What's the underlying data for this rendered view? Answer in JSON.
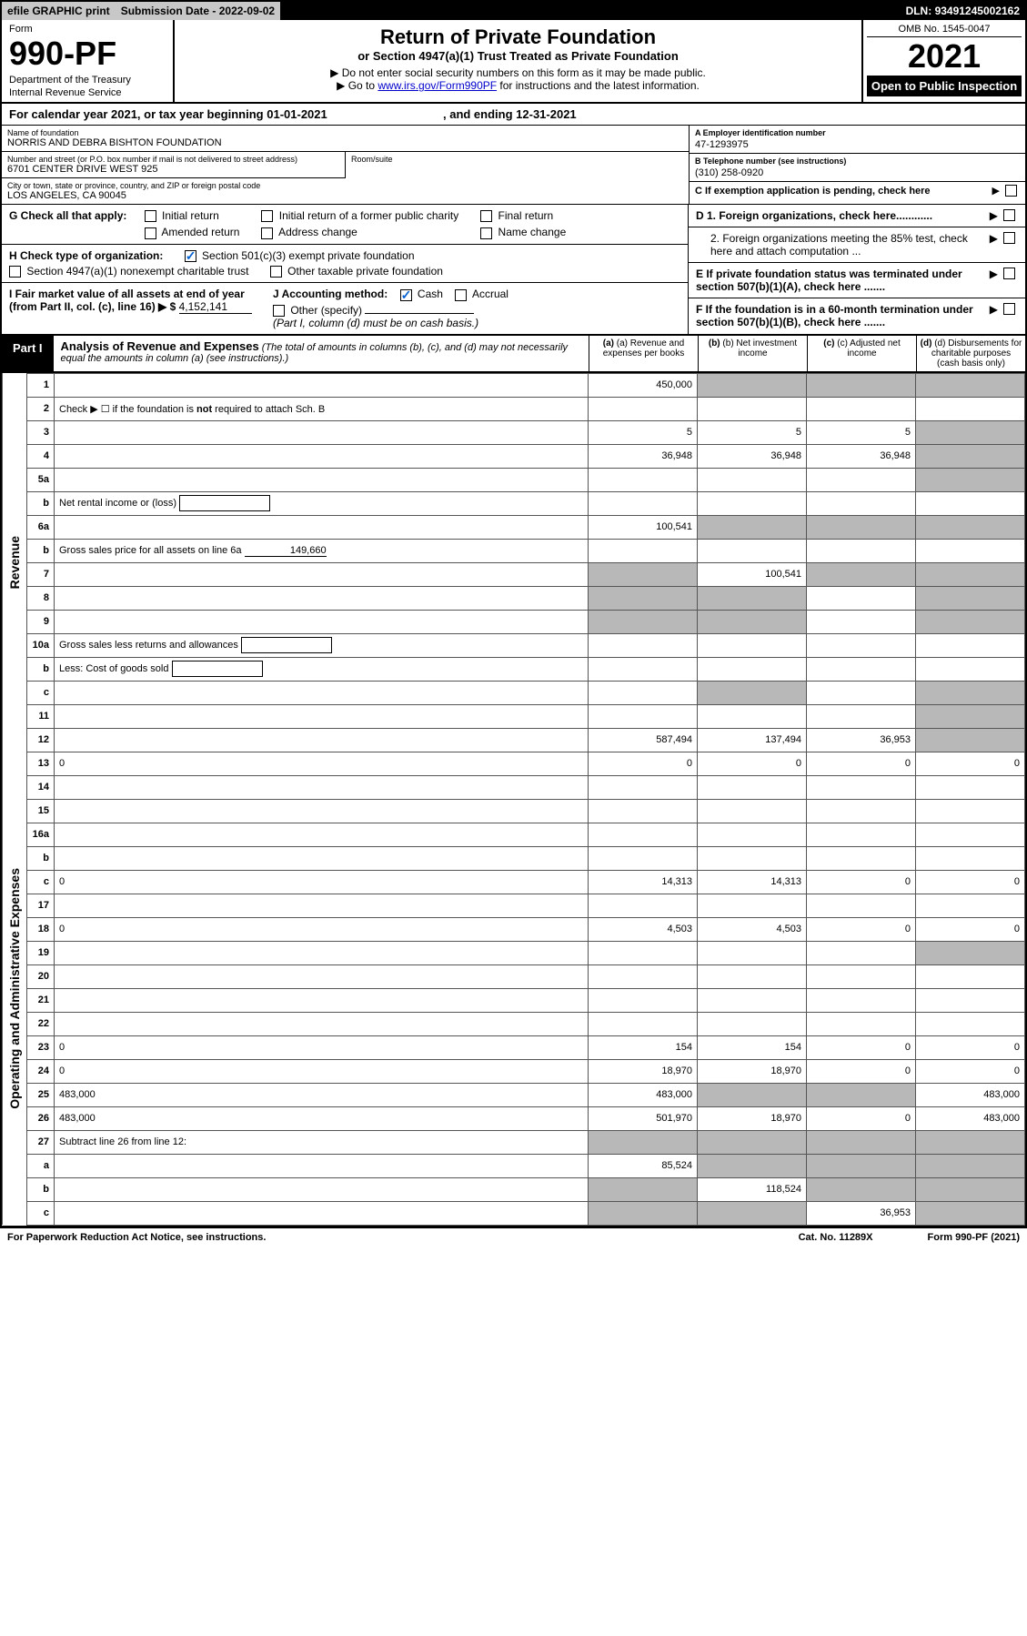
{
  "topbar": {
    "efile": "efile GRAPHIC print",
    "subdate_label": "Submission Date - ",
    "subdate": "2022-09-02",
    "dln_label": "DLN: ",
    "dln": "93491245002162"
  },
  "header": {
    "form_label": "Form",
    "form_no": "990-PF",
    "dept1": "Department of the Treasury",
    "dept2": "Internal Revenue Service",
    "title": "Return of Private Foundation",
    "subtitle": "or Section 4947(a)(1) Trust Treated as Private Foundation",
    "note1": "▶ Do not enter social security numbers on this form as it may be made public.",
    "note2_pre": "▶ Go to ",
    "note2_link": "www.irs.gov/Form990PF",
    "note2_post": " for instructions and the latest information.",
    "omb": "OMB No. 1545-0047",
    "year": "2021",
    "open": "Open to Public Inspection"
  },
  "cal": {
    "text_a": "For calendar year 2021, or tax year beginning ",
    "begin": "01-01-2021",
    "text_b": ", and ending ",
    "end": "12-31-2021"
  },
  "org": {
    "name_lbl": "Name of foundation",
    "name": "NORRIS AND DEBRA BISHTON FOUNDATION",
    "addr_lbl": "Number and street (or P.O. box number if mail is not delivered to street address)",
    "addr": "6701 CENTER DRIVE WEST 925",
    "room_lbl": "Room/suite",
    "city_lbl": "City or town, state or province, country, and ZIP or foreign postal code",
    "city": "LOS ANGELES, CA  90045",
    "ein_lbl": "A Employer identification number",
    "ein": "47-1293975",
    "tel_lbl": "B Telephone number (see instructions)",
    "tel": "(310) 258-0920",
    "c_lbl": "C If exemption application is pending, check here"
  },
  "g": {
    "lead": "G Check all that apply:",
    "items": [
      "Initial return",
      "Initial return of a former public charity",
      "Final return",
      "Amended return",
      "Address change",
      "Name change"
    ]
  },
  "h": {
    "lead": "H Check type of organization:",
    "i1": "Section 501(c)(3) exempt private foundation",
    "i2": "Section 4947(a)(1) nonexempt charitable trust",
    "i3": "Other taxable private foundation"
  },
  "i": {
    "text_a": "I Fair market value of all assets at end of year (from Part II, col. (c), line 16) ▶ $",
    "val": "4,152,141"
  },
  "j": {
    "lead": "J Accounting method:",
    "cash": "Cash",
    "accrual": "Accrual",
    "other": "Other (specify)",
    "note": "(Part I, column (d) must be on cash basis.)"
  },
  "d": {
    "d1": "D 1. Foreign organizations, check here............",
    "d2": "2. Foreign organizations meeting the 85% test, check here and attach computation ...",
    "e": "E  If private foundation status was terminated under section 507(b)(1)(A), check here .......",
    "f": "F  If the foundation is in a 60-month termination under section 507(b)(1)(B), check here ......."
  },
  "part1": {
    "tab": "Part I",
    "title": "Analysis of Revenue and Expenses",
    "note": " (The total of amounts in columns (b), (c), and (d) may not necessarily equal the amounts in column (a) (see instructions).)",
    "cols": {
      "a": "(a)  Revenue and expenses per books",
      "b": "(b)  Net investment income",
      "c": "(c)  Adjusted net income",
      "d": "(d)  Disbursements for charitable purposes (cash basis only)"
    }
  },
  "side": {
    "rev": "Revenue",
    "exp": "Operating and Administrative Expenses"
  },
  "rows": [
    {
      "n": "1",
      "d": "",
      "a": "450,000",
      "b": "",
      "c": "",
      "bsh": 1,
      "csh": 1,
      "dsh": 1
    },
    {
      "n": "2",
      "d": "Check ▶ ☐ if the foundation is <b>not</b> required to attach Sch. B",
      "nov": 1
    },
    {
      "n": "3",
      "d": "",
      "a": "5",
      "b": "5",
      "c": "5",
      "dsh": 1
    },
    {
      "n": "4",
      "d": "",
      "a": "36,948",
      "b": "36,948",
      "c": "36,948",
      "dsh": 1
    },
    {
      "n": "5a",
      "d": "",
      "a": "",
      "b": "",
      "c": "",
      "dsh": 1
    },
    {
      "n": "b",
      "d": "Net rental income or (loss)",
      "box": "",
      "nov": 1
    },
    {
      "n": "6a",
      "d": "",
      "a": "100,541",
      "b": "",
      "c": "",
      "bsh": 1,
      "csh": 1,
      "dsh": 1
    },
    {
      "n": "b",
      "d": "Gross sales price for all assets on line 6a",
      "uline": "149,660",
      "nov": 1
    },
    {
      "n": "7",
      "d": "",
      "a": "",
      "b": "100,541",
      "c": "",
      "ash": 1,
      "csh": 1,
      "dsh": 1
    },
    {
      "n": "8",
      "d": "",
      "a": "",
      "b": "",
      "c": "",
      "ash": 1,
      "bsh": 1,
      "dsh": 1
    },
    {
      "n": "9",
      "d": "",
      "a": "",
      "b": "",
      "c": "",
      "ash": 1,
      "bsh": 1,
      "dsh": 1
    },
    {
      "n": "10a",
      "d": "Gross sales less returns and allowances",
      "box": "",
      "nov": 1
    },
    {
      "n": "b",
      "d": "Less: Cost of goods sold",
      "box": "",
      "nov": 1
    },
    {
      "n": "c",
      "d": "",
      "a": "",
      "b": "",
      "c": "",
      "bsh": 1,
      "dsh": 1
    },
    {
      "n": "11",
      "d": "",
      "a": "",
      "b": "",
      "c": "",
      "dsh": 1
    },
    {
      "n": "12",
      "d": "",
      "a": "587,494",
      "b": "137,494",
      "c": "36,953",
      "dsh": 1
    }
  ],
  "rows2": [
    {
      "n": "13",
      "d": "0",
      "a": "0",
      "b": "0",
      "c": "0"
    },
    {
      "n": "14",
      "d": "",
      "a": "",
      "b": "",
      "c": ""
    },
    {
      "n": "15",
      "d": "",
      "a": "",
      "b": "",
      "c": ""
    },
    {
      "n": "16a",
      "d": "",
      "a": "",
      "b": "",
      "c": ""
    },
    {
      "n": "b",
      "d": "",
      "a": "",
      "b": "",
      "c": ""
    },
    {
      "n": "c",
      "d": "0",
      "a": "14,313",
      "b": "14,313",
      "c": "0"
    },
    {
      "n": "17",
      "d": "",
      "a": "",
      "b": "",
      "c": ""
    },
    {
      "n": "18",
      "d": "0",
      "a": "4,503",
      "b": "4,503",
      "c": "0"
    },
    {
      "n": "19",
      "d": "",
      "a": "",
      "b": "",
      "c": "",
      "dsh": 1
    },
    {
      "n": "20",
      "d": "",
      "a": "",
      "b": "",
      "c": ""
    },
    {
      "n": "21",
      "d": "",
      "a": "",
      "b": "",
      "c": ""
    },
    {
      "n": "22",
      "d": "",
      "a": "",
      "b": "",
      "c": ""
    },
    {
      "n": "23",
      "d": "0",
      "a": "154",
      "b": "154",
      "c": "0"
    },
    {
      "n": "24",
      "d": "0",
      "a": "18,970",
      "b": "18,970",
      "c": "0"
    },
    {
      "n": "25",
      "d": "483,000",
      "a": "483,000",
      "b": "",
      "c": "",
      "bsh": 1,
      "csh": 1
    },
    {
      "n": "26",
      "d": "483,000",
      "a": "501,970",
      "b": "18,970",
      "c": "0"
    },
    {
      "n": "27",
      "d": "Subtract line 26 from line 12:",
      "nov": 1,
      "ash": 1,
      "bsh": 1,
      "csh": 1,
      "dsh": 1
    },
    {
      "n": "a",
      "d": "",
      "a": "85,524",
      "b": "",
      "c": "",
      "bsh": 1,
      "csh": 1,
      "dsh": 1
    },
    {
      "n": "b",
      "d": "",
      "a": "",
      "b": "118,524",
      "c": "",
      "ash": 1,
      "csh": 1,
      "dsh": 1
    },
    {
      "n": "c",
      "d": "",
      "a": "",
      "b": "",
      "c": "36,953",
      "ash": 1,
      "bsh": 1,
      "dsh": 1
    }
  ],
  "footer": {
    "l": "For Paperwork Reduction Act Notice, see instructions.",
    "c": "Cat. No. 11289X",
    "r": "Form 990-PF (2021)"
  }
}
